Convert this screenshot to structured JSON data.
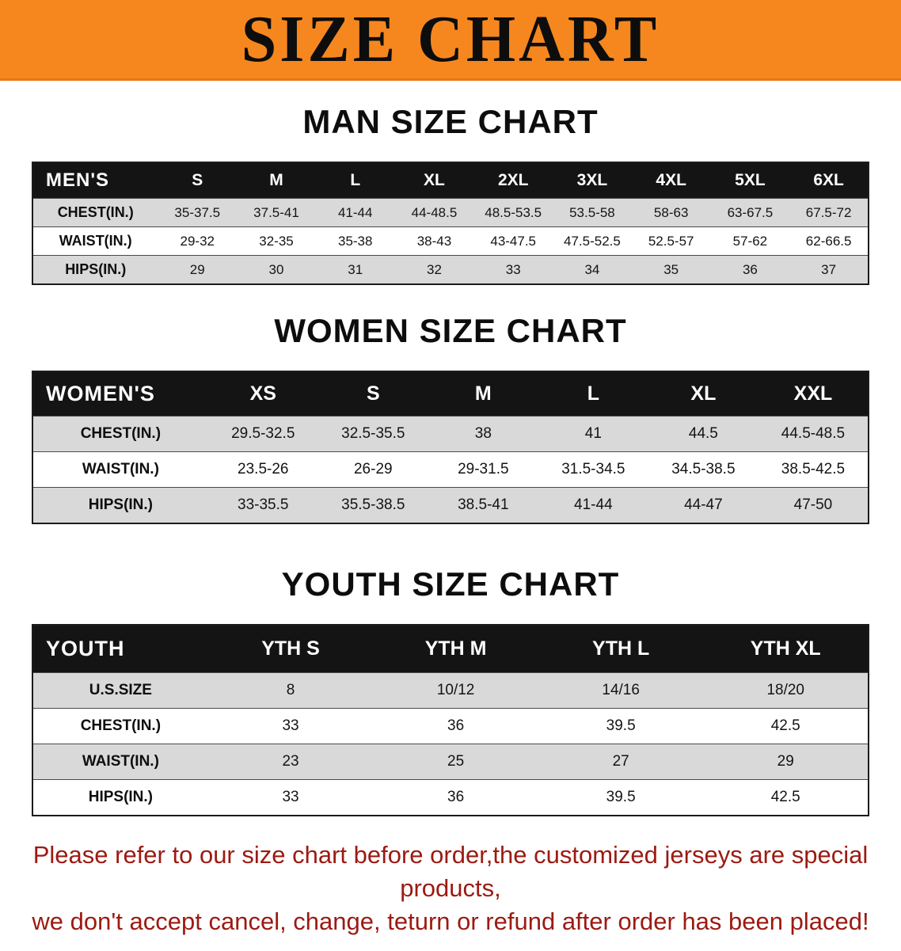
{
  "banner": {
    "title": "SIZE CHART",
    "bg_color": "#f6871e",
    "text_color": "#0d0d0d"
  },
  "sections": [
    {
      "id": "men",
      "heading": "MAN SIZE CHART",
      "table": {
        "header": [
          "MEN'S",
          "S",
          "M",
          "L",
          "XL",
          "2XL",
          "3XL",
          "4XL",
          "5XL",
          "6XL"
        ],
        "rows": [
          {
            "label": "CHEST(IN.)",
            "values": [
              "35-37.5",
              "37.5-41",
              "41-44",
              "44-48.5",
              "48.5-53.5",
              "53.5-58",
              "58-63",
              "63-67.5",
              "67.5-72"
            ]
          },
          {
            "label": "WAIST(IN.)",
            "values": [
              "29-32",
              "32-35",
              "35-38",
              "38-43",
              "43-47.5",
              "47.5-52.5",
              "52.5-57",
              "57-62",
              "62-66.5"
            ]
          },
          {
            "label": "HIPS(IN.)",
            "values": [
              "29",
              "30",
              "31",
              "32",
              "33",
              "34",
              "35",
              "36",
              "37"
            ]
          }
        ]
      }
    },
    {
      "id": "women",
      "heading": "WOMEN SIZE CHART",
      "table": {
        "header": [
          "WOMEN'S",
          "XS",
          "S",
          "M",
          "L",
          "XL",
          "XXL"
        ],
        "rows": [
          {
            "label": "CHEST(IN.)",
            "values": [
              "29.5-32.5",
              "32.5-35.5",
              "38",
              "41",
              "44.5",
              "44.5-48.5"
            ]
          },
          {
            "label": "WAIST(IN.)",
            "values": [
              "23.5-26",
              "26-29",
              "29-31.5",
              "31.5-34.5",
              "34.5-38.5",
              "38.5-42.5"
            ]
          },
          {
            "label": "HIPS(IN.)",
            "values": [
              "33-35.5",
              "35.5-38.5",
              "38.5-41",
              "41-44",
              "44-47",
              "47-50"
            ]
          }
        ]
      }
    },
    {
      "id": "youth",
      "heading": "YOUTH SIZE CHART",
      "table": {
        "header": [
          "YOUTH",
          "YTH S",
          "YTH M",
          "YTH L",
          "YTH XL"
        ],
        "rows": [
          {
            "label": "U.S.SIZE",
            "values": [
              "8",
              "10/12",
              "14/16",
              "18/20"
            ]
          },
          {
            "label": "CHEST(IN.)",
            "values": [
              "33",
              "36",
              "39.5",
              "42.5"
            ]
          },
          {
            "label": "WAIST(IN.)",
            "values": [
              "23",
              "25",
              "27",
              "29"
            ]
          },
          {
            "label": "HIPS(IN.)",
            "values": [
              "33",
              "36",
              "39.5",
              "42.5"
            ]
          }
        ]
      }
    }
  ],
  "disclaimer": {
    "line1": "Please refer to our size chart before order,the customized jerseys are special products,",
    "line2": "we don't accept cancel, change, teturn or refund after order has been placed!",
    "text_color": "#9c1a12"
  }
}
